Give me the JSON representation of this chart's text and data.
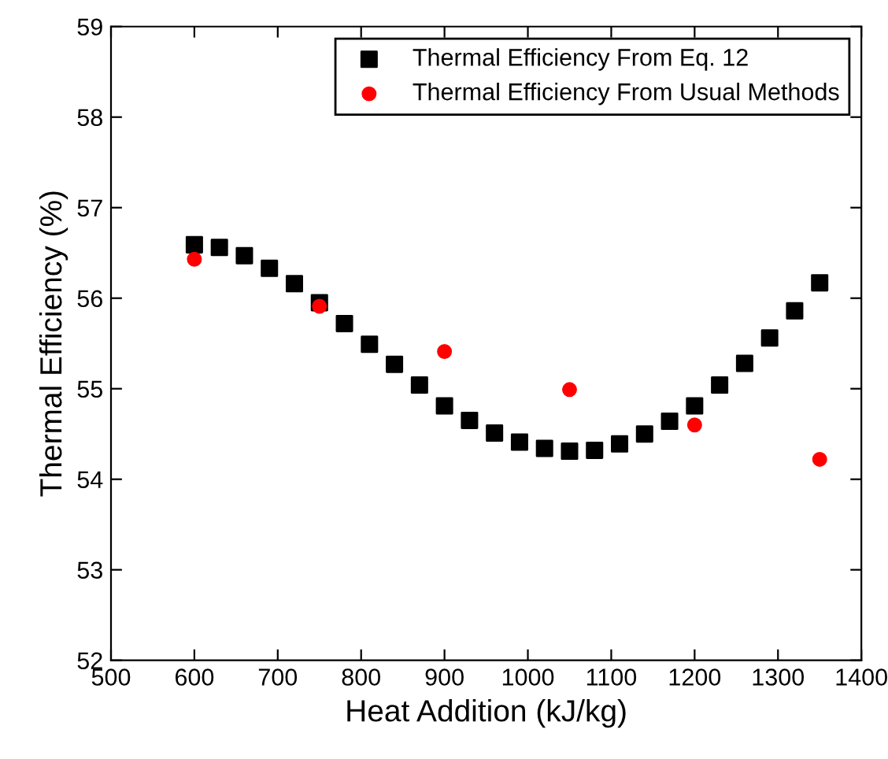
{
  "chart_data": {
    "type": "scatter",
    "xlabel": "Heat Addition (kJ/kg)",
    "ylabel": "Thermal Efficiency (%)",
    "xlim": [
      500,
      1400
    ],
    "xticks": [
      500,
      600,
      700,
      800,
      900,
      1000,
      1100,
      1200,
      1300,
      1400
    ],
    "ylim": [
      52,
      59
    ],
    "yticks": [
      52,
      53,
      54,
      55,
      56,
      57,
      58,
      59
    ],
    "grid": false,
    "legend": "top right",
    "series": [
      {
        "name": "Thermal Efficiency From Eq. 12",
        "color": "#000000",
        "marker": "square",
        "x": [
          600,
          630,
          660,
          690,
          720,
          750,
          780,
          810,
          840,
          870,
          900,
          930,
          960,
          990,
          1020,
          1050,
          1080,
          1110,
          1140,
          1170,
          1200,
          1230,
          1260,
          1290,
          1320,
          1350
        ],
        "values": [
          56.59,
          56.56,
          56.47,
          56.33,
          56.16,
          55.95,
          55.72,
          55.49,
          55.27,
          55.04,
          54.81,
          54.65,
          54.51,
          54.41,
          54.34,
          54.31,
          54.32,
          54.39,
          54.5,
          54.64,
          54.81,
          55.04,
          55.28,
          55.56,
          55.86,
          56.17
        ]
      },
      {
        "name": "Thermal Efficiency From Usual Methods",
        "color": "#ff0000",
        "marker": "circle",
        "x": [
          600,
          750,
          900,
          1050,
          1200,
          1350
        ],
        "values": [
          56.43,
          55.91,
          55.41,
          54.99,
          54.6,
          54.22
        ]
      }
    ]
  }
}
